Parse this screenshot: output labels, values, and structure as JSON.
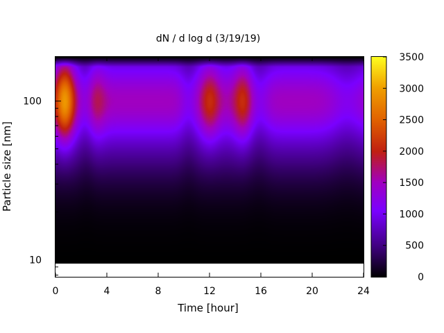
{
  "chart_data": {
    "type": "heatmap",
    "title": "dN / d log d (3/19/19)",
    "xlabel": "Time [hour]",
    "ylabel": "Particle size [nm]",
    "xlim": [
      0,
      24
    ],
    "ylim": [
      7.8,
      190
    ],
    "y_scale": "log",
    "x_ticks": [
      0,
      4,
      8,
      12,
      16,
      20,
      24
    ],
    "x_tick_labels": [
      "0",
      "4",
      "8",
      "12",
      "16",
      "20",
      "24"
    ],
    "y_ticks": [
      10,
      100
    ],
    "y_tick_labels": [
      "10",
      "100"
    ],
    "colorbar": {
      "min": 0,
      "max": 3500,
      "ticks": [
        0,
        500,
        1000,
        1500,
        2000,
        2500,
        3000,
        3500
      ],
      "tick_labels": [
        "0",
        "500",
        "1000",
        "1500",
        "2000",
        "2500",
        "3000",
        "3500"
      ],
      "colormap": "black-purple-red-orange-yellow"
    },
    "size_range_nm": [
      9.5,
      190
    ],
    "background_level": 1150,
    "peak_diameter_nm": 100,
    "events": [
      {
        "time_hour": 0.7,
        "peak_value": 2950
      },
      {
        "time_hour": 3.1,
        "peak_value": 1900
      },
      {
        "time_hour": 12.0,
        "peak_value": 2100
      },
      {
        "time_hour": 14.6,
        "peak_value": 2150
      }
    ],
    "low_periods": [
      {
        "start_hour": 2.0,
        "end_hour": 2.8
      },
      {
        "start_hour": 9.9,
        "end_hour": 10.8
      },
      {
        "start_hour": 15.2,
        "end_hour": 16.4
      },
      {
        "start_hour": 21.6,
        "end_hour": 23.8
      }
    ]
  }
}
